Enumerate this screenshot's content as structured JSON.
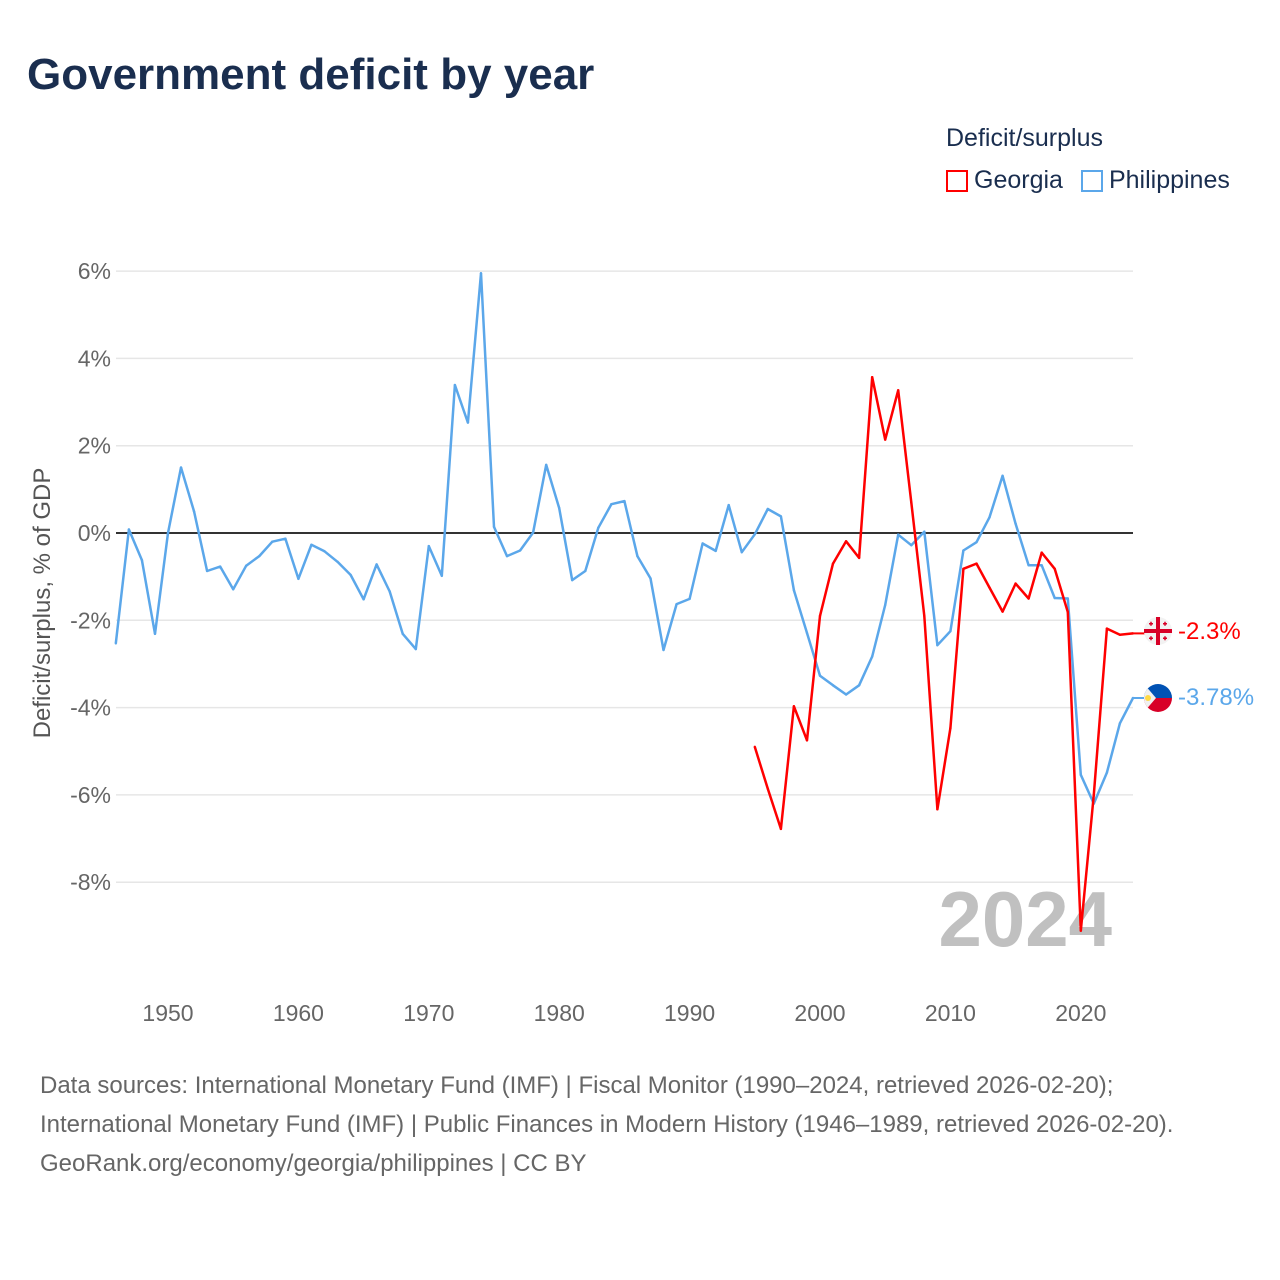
{
  "title": "Government deficit by year",
  "legend": {
    "title": "Deficit/surplus",
    "items": [
      {
        "label": "Georgia",
        "color": "#ff0000"
      },
      {
        "label": "Philippines",
        "color": "#5ba7ea"
      }
    ]
  },
  "watermark_year": "2024",
  "footer": {
    "sources": "Data sources: International Monetary Fund (IMF) | Fiscal Monitor (1990–2024, retrieved 2026-02-20); International Monetary Fund (IMF) | Public Finances in Modern History (1946–1989, retrieved 2026-02-20).",
    "credit": "GeoRank.org/economy/georgia/philippines | CC BY"
  },
  "chart_data": {
    "type": "line",
    "title": "Government deficit by year",
    "xlabel": "",
    "ylabel": "Deficit/surplus, % of GDP",
    "xlim": [
      1946,
      2024
    ],
    "ylim": [
      -9.2,
      6
    ],
    "x_ticks": [
      1950,
      1960,
      1970,
      1980,
      1990,
      2000,
      2010,
      2020
    ],
    "y_ticks": [
      6,
      4,
      2,
      0,
      -2,
      -4,
      -6,
      -8
    ],
    "y_tick_labels": [
      "6%",
      "4%",
      "2%",
      "0%",
      "-2%",
      "-4%",
      "-6%",
      "-8%"
    ],
    "grid": true,
    "legend_position": "top-right",
    "series": [
      {
        "name": "Georgia",
        "color": "#ff0000",
        "end_label": "-2.3%",
        "x": [
          1995,
          1996,
          1997,
          1998,
          1999,
          2000,
          2001,
          2002,
          2003,
          2004,
          2005,
          2006,
          2007,
          2008,
          2009,
          2010,
          2011,
          2012,
          2013,
          2014,
          2015,
          2016,
          2017,
          2018,
          2019,
          2020,
          2021,
          2022,
          2023,
          2024
        ],
        "values": [
          -4.9,
          -5.86,
          -6.78,
          -3.97,
          -4.75,
          -1.9,
          -0.7,
          -0.19,
          -0.57,
          3.57,
          2.14,
          3.27,
          0.7,
          -1.9,
          -6.33,
          -4.47,
          -0.82,
          -0.7,
          -1.25,
          -1.8,
          -1.16,
          -1.5,
          -0.45,
          -0.82,
          -1.81,
          -9.11,
          -6.0,
          -2.19,
          -2.33,
          -2.3
        ]
      },
      {
        "name": "Philippines",
        "color": "#5ba7ea",
        "end_label": "-3.78%",
        "x": [
          1946,
          1947,
          1948,
          1949,
          1950,
          1951,
          1952,
          1953,
          1954,
          1955,
          1956,
          1957,
          1958,
          1959,
          1960,
          1961,
          1962,
          1963,
          1964,
          1965,
          1966,
          1967,
          1968,
          1969,
          1970,
          1971,
          1972,
          1973,
          1974,
          1975,
          1976,
          1977,
          1978,
          1979,
          1980,
          1981,
          1982,
          1983,
          1984,
          1985,
          1986,
          1987,
          1988,
          1989,
          1990,
          1991,
          1992,
          1993,
          1994,
          1995,
          1996,
          1997,
          1998,
          1999,
          2000,
          2001,
          2002,
          2003,
          2004,
          2005,
          2006,
          2007,
          2008,
          2009,
          2010,
          2011,
          2012,
          2013,
          2014,
          2015,
          2016,
          2017,
          2018,
          2019,
          2020,
          2021,
          2022,
          2023,
          2024
        ],
        "values": [
          -2.53,
          0.08,
          -0.62,
          -2.31,
          0,
          1.5,
          0.49,
          -0.87,
          -0.77,
          -1.29,
          -0.75,
          -0.53,
          -0.2,
          -0.13,
          -1.05,
          -0.27,
          -0.42,
          -0.66,
          -0.96,
          -1.52,
          -0.72,
          -1.34,
          -2.31,
          -2.66,
          -0.3,
          -0.98,
          3.39,
          2.53,
          5.95,
          0.14,
          -0.53,
          -0.4,
          0.01,
          1.56,
          0.57,
          -1.08,
          -0.87,
          0.12,
          0.66,
          0.73,
          -0.53,
          -1.04,
          -2.68,
          -1.63,
          -1.51,
          -0.24,
          -0.41,
          0.64,
          -0.44,
          -0.03,
          0.55,
          0.38,
          -1.31,
          -2.29,
          -3.27,
          -3.49,
          -3.7,
          -3.49,
          -2.83,
          -1.65,
          -0.04,
          -0.28,
          0.03,
          -2.57,
          -2.25,
          -0.4,
          -0.21,
          0.36,
          1.31,
          0.21,
          -0.74,
          -0.74,
          -1.49,
          -1.5,
          -5.54,
          -6.2,
          -5.49,
          -4.36,
          -3.78
        ]
      }
    ]
  }
}
